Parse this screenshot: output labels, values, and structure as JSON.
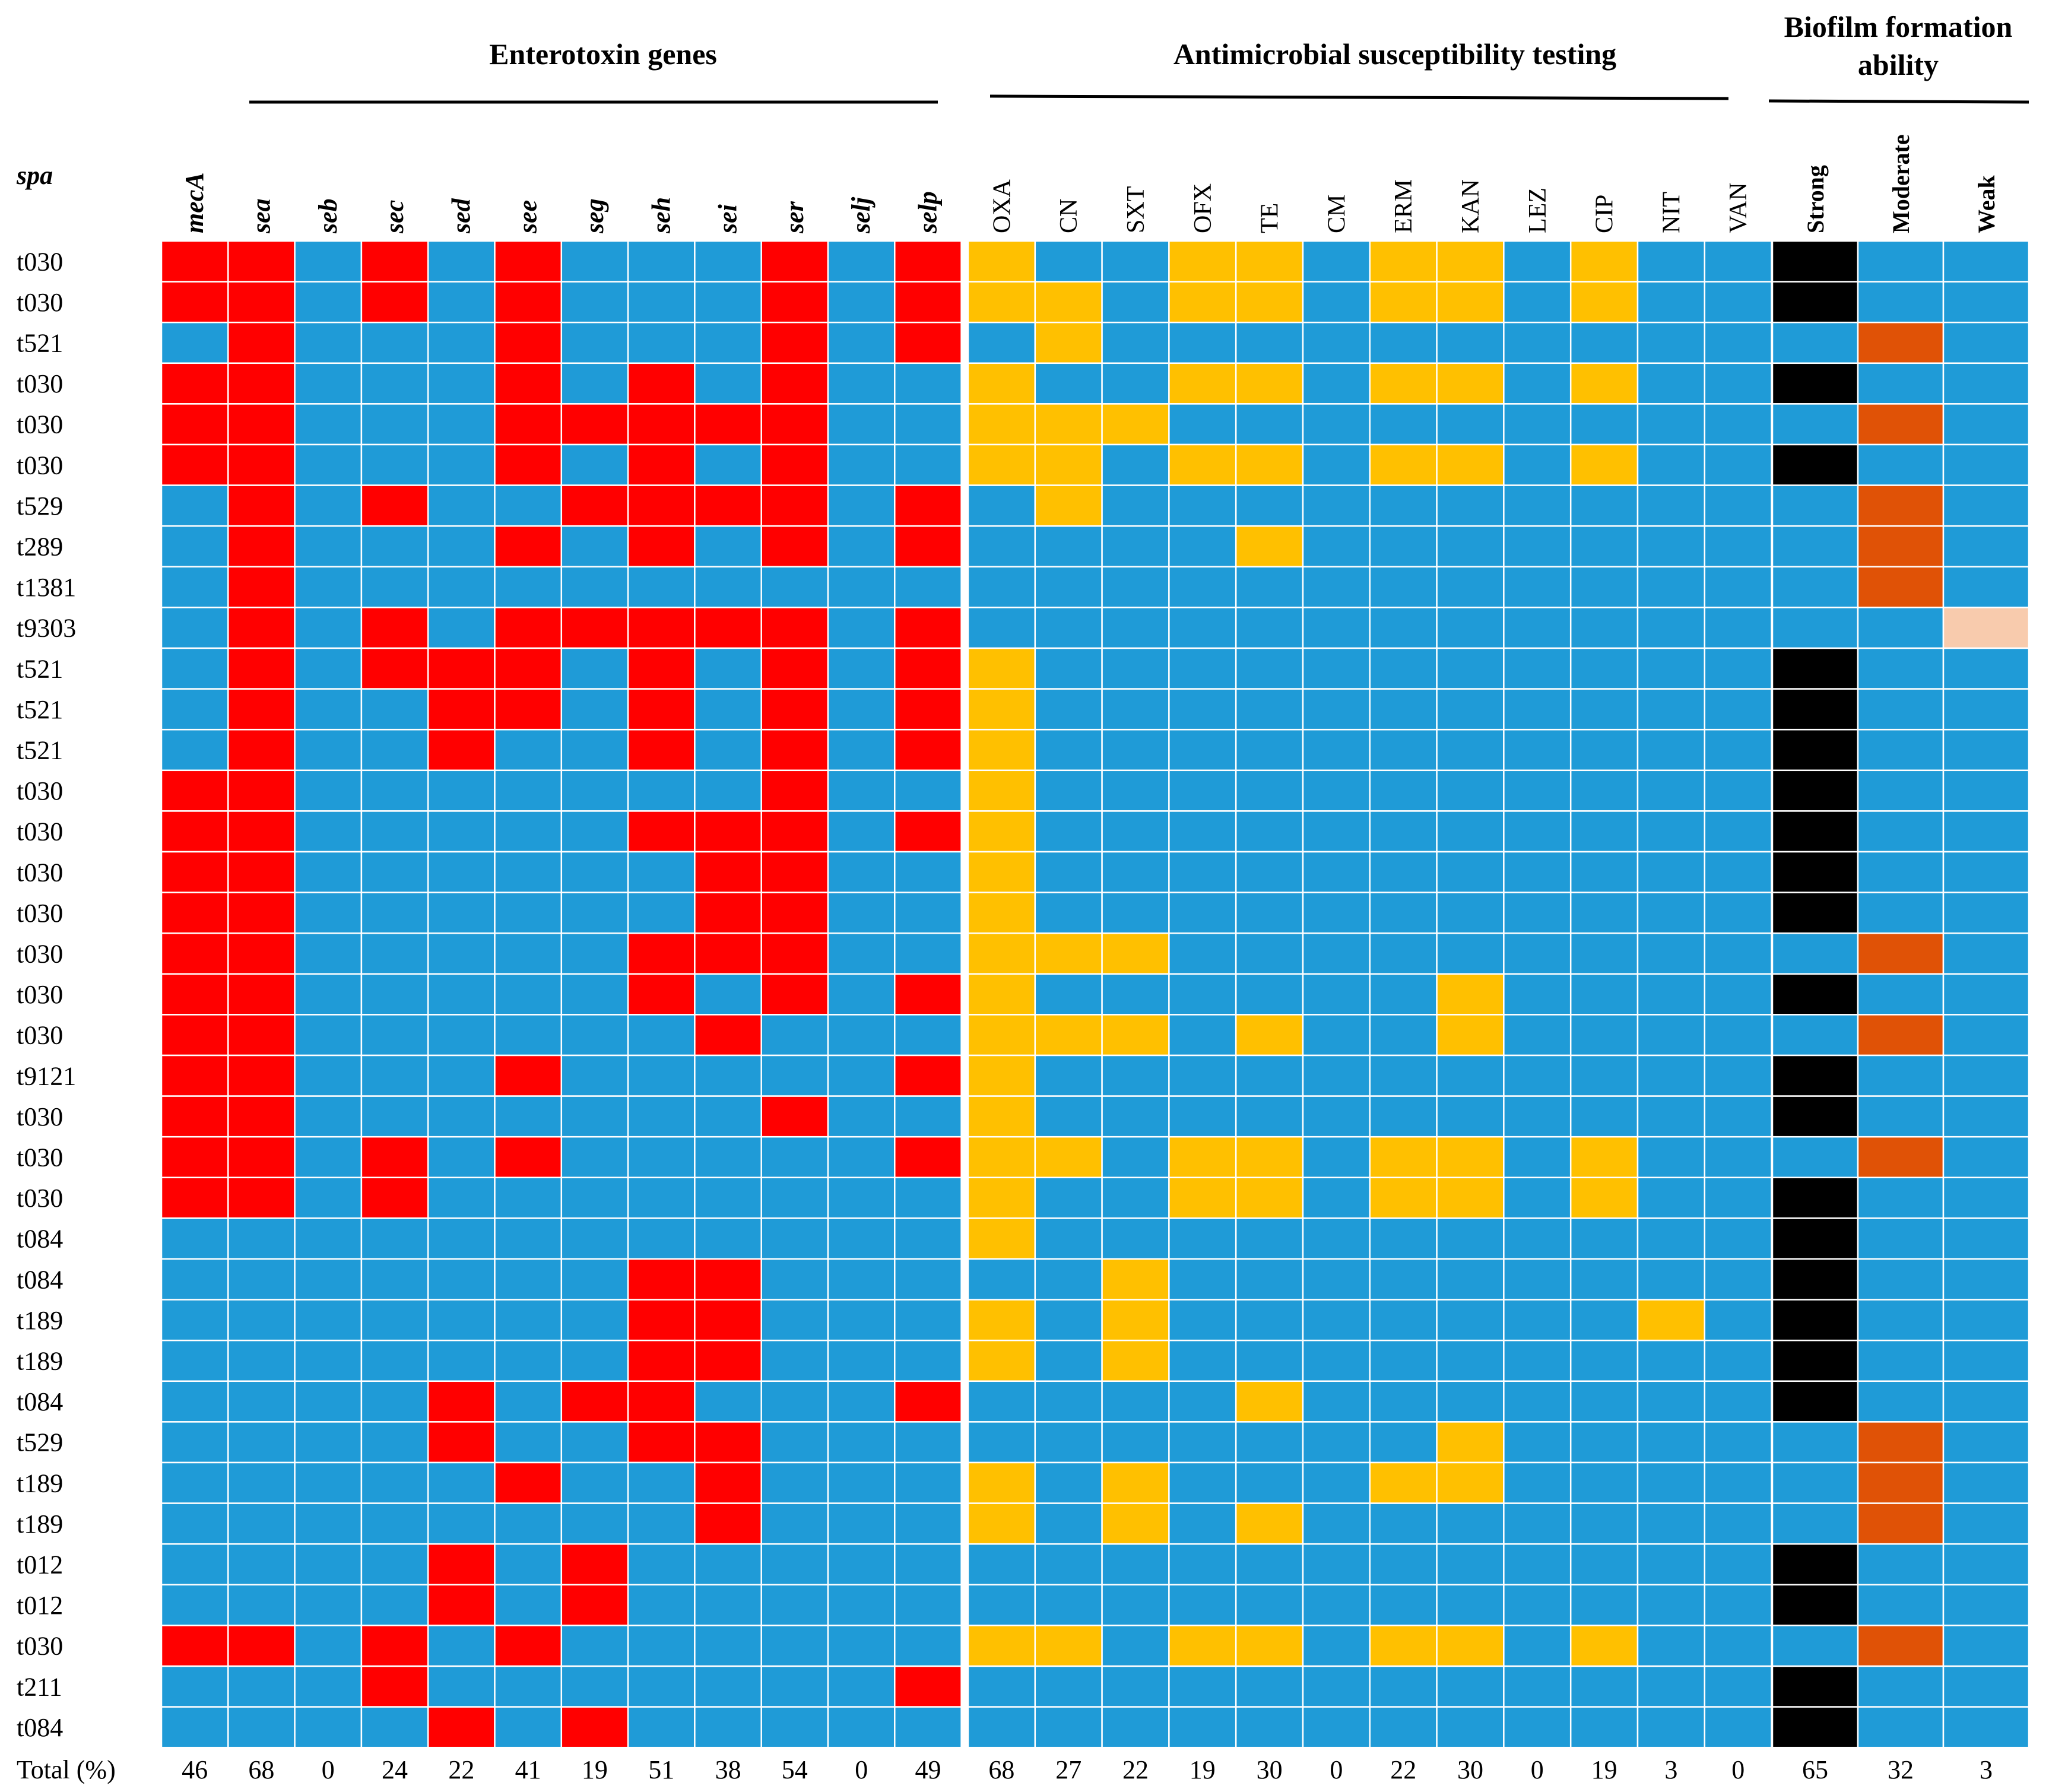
{
  "chart_data": {
    "type": "heatmap",
    "row_header": "spa",
    "rows": [
      "t030",
      "t030",
      "t521",
      "t030",
      "t030",
      "t030",
      "t529",
      "t289",
      "t1381",
      "t9303",
      "t521",
      "t521",
      "t521",
      "t030",
      "t030",
      "t030",
      "t030",
      "t030",
      "t030",
      "t030",
      "t9121",
      "t030",
      "t030",
      "t030",
      "t084",
      "t084",
      "t189",
      "t189",
      "t084",
      "t529",
      "t189",
      "t189",
      "t012",
      "t012",
      "t030",
      "t211",
      "t084"
    ],
    "groups": [
      {
        "name": "Enterotoxin genes",
        "label": "Enterotoxin genes",
        "columns": [
          "mecA",
          "sea",
          "seb",
          "sec",
          "sed",
          "see",
          "seg",
          "seh",
          "sei",
          "ser",
          "selj",
          "selp"
        ],
        "positive_color": "#ff0000",
        "matrix": [
          "110101000101",
          "110101000101",
          "010001000101",
          "110001010100",
          "110001111100",
          "110001010100",
          "010100111101",
          "010001010101",
          "010000000000",
          "010101111101",
          "010111010101",
          "010011010101",
          "010010010101",
          "110000000100",
          "110000011101",
          "110000001100",
          "110000001100",
          "110000011100",
          "110000010101",
          "110000001000",
          "110001000001",
          "110000000100",
          "110101000001",
          "110100000000",
          "000000000000",
          "000000011000",
          "000000011000",
          "000000011000",
          "000010110001",
          "000010011000",
          "000001001000",
          "000000001000",
          "000010100000",
          "000010100000",
          "110101000000",
          "000100000001",
          "000010100000"
        ],
        "totals": [
          46,
          68,
          0,
          24,
          22,
          41,
          19,
          51,
          38,
          54,
          0,
          49
        ]
      },
      {
        "name": "Antimicrobial susceptibility testing",
        "label": "Antimicrobial susceptibility testing",
        "columns": [
          "OXA",
          "CN",
          "SXT",
          "OFX",
          "TE",
          "CM",
          "ERM",
          "KAN",
          "LEZ",
          "CIP",
          "NIT",
          "VAN"
        ],
        "positive_color": "#ffc000",
        "matrix": [
          "100110110100",
          "110110110100",
          "010000000000",
          "100110110100",
          "111000000000",
          "110110110100",
          "010000000000",
          "000010000000",
          "000000000000",
          "000000000000",
          "100000000000",
          "100000000000",
          "100000000000",
          "100000000000",
          "100000000000",
          "100000000000",
          "100000000000",
          "111000000000",
          "100000010000",
          "111010010000",
          "100000000000",
          "100000000000",
          "110110110100",
          "100110110100",
          "100000000000",
          "001000000000",
          "101000000010",
          "101000000000",
          "000010000000",
          "000000010000",
          "101000110000",
          "101010000000",
          "000000000000",
          "000000000000",
          "110110110100",
          "000000000000",
          "000000000000"
        ],
        "totals": [
          68,
          27,
          22,
          19,
          30,
          0,
          22,
          30,
          0,
          19,
          3,
          0
        ]
      },
      {
        "name": "Biofilm formation ability",
        "label_line1": "Biofilm formation",
        "label_line2": "ability",
        "columns": [
          "Strong",
          "Moderate",
          "Weak"
        ],
        "colors": {
          "Strong": "#000000",
          "Moderate": "#e05206",
          "Weak": "#f8cbad"
        },
        "assignment": [
          "S",
          "S",
          "M",
          "S",
          "M",
          "S",
          "M",
          "M",
          "M",
          "W",
          "S",
          "S",
          "S",
          "S",
          "S",
          "S",
          "S",
          "M",
          "S",
          "M",
          "S",
          "S",
          "M",
          "S",
          "S",
          "S",
          "S",
          "S",
          "S",
          "M",
          "M",
          "M",
          "S",
          "S",
          "M",
          "S",
          "S"
        ],
        "totals": [
          65,
          32,
          3
        ]
      }
    ],
    "negative_color": "#1f9bd7",
    "totals_label": "Total (%)"
  }
}
